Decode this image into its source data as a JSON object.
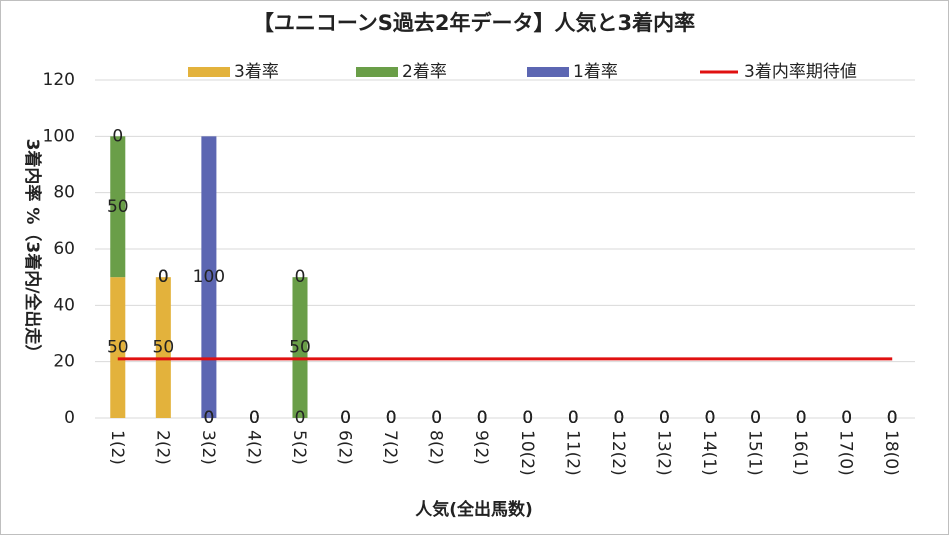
{
  "chart_data": {
    "type": "bar",
    "stacked": true,
    "title": "【ユニコーンS過去2年データ】人気と3着内率",
    "x_label": "人気(全出馬数)",
    "y_label": "3着内率 %（3着内/全出走）",
    "categories": [
      "1(2)",
      "2(2)",
      "3(2)",
      "4(2)",
      "5(2)",
      "6(2)",
      "7(2)",
      "8(2)",
      "9(2)",
      "10(2)",
      "11(2)",
      "12(2)",
      "13(2)",
      "14(1)",
      "15(1)",
      "16(1)",
      "17(0)",
      "18(0)"
    ],
    "series": [
      {
        "name": "3着率",
        "color": "#e3b23c",
        "values": [
          50,
          50,
          0,
          0,
          0,
          0,
          0,
          0,
          0,
          0,
          0,
          0,
          0,
          0,
          0,
          0,
          0,
          0
        ]
      },
      {
        "name": "2着率",
        "color": "#6a9e48",
        "values": [
          50,
          0,
          0,
          0,
          50,
          0,
          0,
          0,
          0,
          0,
          0,
          0,
          0,
          0,
          0,
          0,
          0,
          0
        ]
      },
      {
        "name": "1着率",
        "color": "#5c66b2",
        "values": [
          0,
          0,
          100,
          0,
          0,
          0,
          0,
          0,
          0,
          0,
          0,
          0,
          0,
          0,
          0,
          0,
          0,
          0
        ]
      },
      {
        "name": "3着内率期待値",
        "type": "line",
        "color": "#e01010",
        "values": [
          21,
          21,
          21,
          21,
          21,
          21,
          21,
          21,
          21,
          21,
          21,
          21,
          21,
          21,
          21,
          21,
          21,
          21
        ]
      }
    ],
    "ylim": [
      0,
      120
    ],
    "yticks": [
      0,
      20,
      40,
      60,
      80,
      100,
      120
    ],
    "grid": true
  }
}
